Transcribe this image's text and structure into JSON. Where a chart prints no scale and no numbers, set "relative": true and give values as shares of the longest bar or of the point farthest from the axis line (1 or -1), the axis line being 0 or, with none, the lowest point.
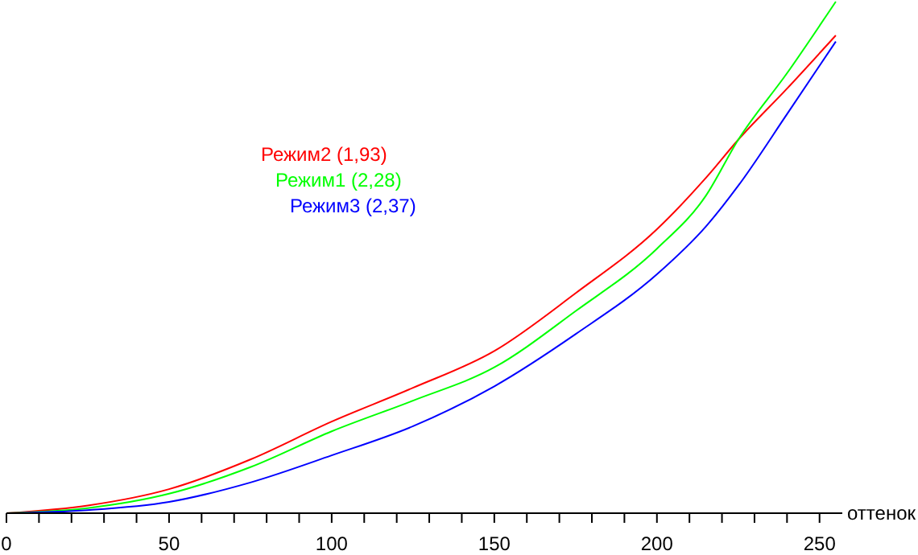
{
  "chart_data": {
    "type": "line",
    "relative": true,
    "xlabel": "оттенок",
    "xlim": [
      0,
      257
    ],
    "xticks": [
      0,
      {
        "value": 10,
        "label": null
      },
      {
        "value": 20,
        "label": null
      },
      {
        "value": 30,
        "label": null
      },
      {
        "value": 40,
        "label": null
      },
      50,
      {
        "value": 60,
        "label": null
      },
      {
        "value": 70,
        "label": null
      },
      {
        "value": 80,
        "label": null
      },
      {
        "value": 90,
        "label": null
      },
      100,
      {
        "value": 110,
        "label": null
      },
      {
        "value": 120,
        "label": null
      },
      {
        "value": 130,
        "label": null
      },
      {
        "value": 140,
        "label": null
      },
      150,
      {
        "value": 160,
        "label": null
      },
      {
        "value": 170,
        "label": null
      },
      {
        "value": 180,
        "label": null
      },
      {
        "value": 190,
        "label": null
      },
      200,
      {
        "value": 210,
        "label": null
      },
      {
        "value": 220,
        "label": null
      },
      {
        "value": 230,
        "label": null
      },
      {
        "value": 240,
        "label": null
      },
      250
    ],
    "x": [
      0,
      25,
      50,
      75,
      100,
      125,
      150,
      175,
      200,
      215,
      225,
      240,
      255
    ],
    "series": [
      {
        "name": "Режим2 (1,93)",
        "color": "#ff0000",
        "values": [
          0,
          0.015,
          0.047,
          0.105,
          0.179,
          0.245,
          0.317,
          0.43,
          0.555,
          0.655,
          0.73,
          0.83,
          0.934
        ]
      },
      {
        "name": "Режим1 (2,28)",
        "color": "#00ff00",
        "values": [
          0,
          0.01,
          0.038,
          0.09,
          0.16,
          0.22,
          0.285,
          0.395,
          0.517,
          0.62,
          0.73,
          0.86,
          1
        ]
      },
      {
        "name": "Режим3 (2,37)",
        "color": "#0000ff",
        "values": [
          0,
          0.006,
          0.022,
          0.06,
          0.113,
          0.17,
          0.248,
          0.35,
          0.467,
          0.56,
          0.64,
          0.78,
          0.922
        ]
      }
    ],
    "legend": "left",
    "grid": false,
    "line_style": "solid",
    "marker": "none"
  }
}
